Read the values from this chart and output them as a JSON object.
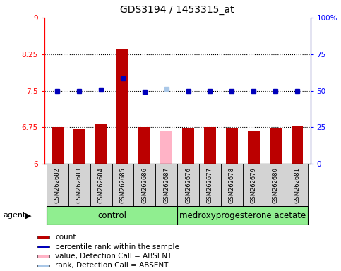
{
  "title": "GDS3194 / 1453315_at",
  "samples": [
    "GSM262682",
    "GSM262683",
    "GSM262684",
    "GSM262685",
    "GSM262686",
    "GSM262687",
    "GSM262676",
    "GSM262677",
    "GSM262678",
    "GSM262679",
    "GSM262680",
    "GSM262681"
  ],
  "bar_values": [
    6.75,
    6.72,
    6.82,
    8.35,
    6.75,
    6.68,
    6.73,
    6.75,
    6.74,
    6.69,
    6.74,
    6.78
  ],
  "dot_values": [
    7.5,
    7.5,
    7.52,
    7.75,
    7.48,
    7.54,
    7.5,
    7.5,
    7.5,
    7.5,
    7.5,
    7.5
  ],
  "absent_bar_idx": 5,
  "absent_dot_idx": 5,
  "absent_bar_color": "#ffb3c6",
  "absent_dot_color": "#aac8e8",
  "bar_color": "#bb0000",
  "dot_color": "#0000bb",
  "ylim_left": [
    6,
    9
  ],
  "ylim_right": [
    0,
    100
  ],
  "yticks_left": [
    6,
    6.75,
    7.5,
    8.25,
    9
  ],
  "yticks_right": [
    0,
    25,
    50,
    75,
    100
  ],
  "ytick_labels_left": [
    "6",
    "6.75",
    "7.5",
    "8.25",
    "9"
  ],
  "ytick_labels_right": [
    "0",
    "25",
    "50",
    "75",
    "100%"
  ],
  "hlines": [
    6.75,
    7.5,
    8.25
  ],
  "control_indices": [
    0,
    1,
    2,
    3,
    4,
    5
  ],
  "treatment_indices": [
    6,
    7,
    8,
    9,
    10,
    11
  ],
  "control_label": "control",
  "treatment_label": "medroxyprogesterone acetate",
  "agent_label": "agent",
  "legend_items": [
    "count",
    "percentile rank within the sample",
    "value, Detection Call = ABSENT",
    "rank, Detection Call = ABSENT"
  ],
  "bar_bottom": 6,
  "group_color": "#90ee90",
  "group_box_color": "#d3d3d3",
  "figsize": [
    4.83,
    3.84
  ],
  "dpi": 100
}
